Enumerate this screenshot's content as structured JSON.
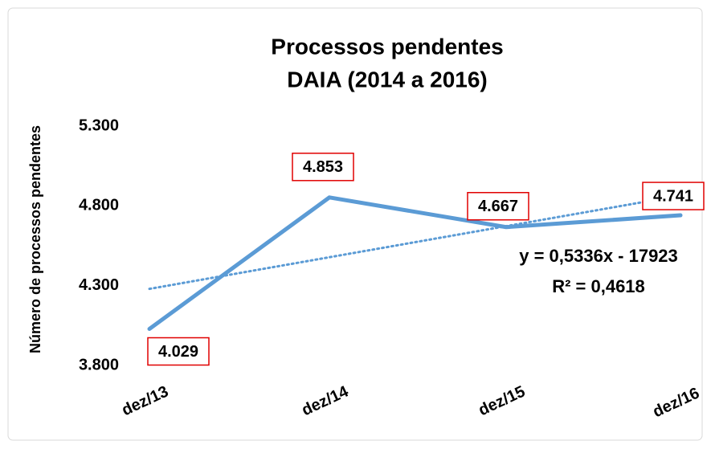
{
  "chart_data": {
    "type": "line",
    "title": "Processos pendentes",
    "subtitle": "DAIA (2014 a 2016)",
    "y_label": "Número de processos pendentes",
    "categories": [
      "dez/13",
      "dez/14",
      "dez/15",
      "dez/16"
    ],
    "series": [
      {
        "name": "Processos pendentes",
        "color": "#5b9bd5",
        "values": [
          4029,
          4853,
          4667,
          4741
        ],
        "value_labels": [
          "4.029",
          "4.853",
          "4.667",
          "4.741"
        ]
      }
    ],
    "trendline": {
      "type": "linear",
      "color": "#5b9bd5",
      "equation": "y = 0,5336x - 17923",
      "r_squared": "R² = 0,4618"
    },
    "ylim": [
      3800,
      5300
    ],
    "yticks": [
      {
        "value": 3800,
        "label": "3.800"
      },
      {
        "value": 4300,
        "label": "4.300"
      },
      {
        "value": 4800,
        "label": "4.800"
      },
      {
        "value": 5300,
        "label": "5.300"
      }
    ],
    "grid": false
  }
}
